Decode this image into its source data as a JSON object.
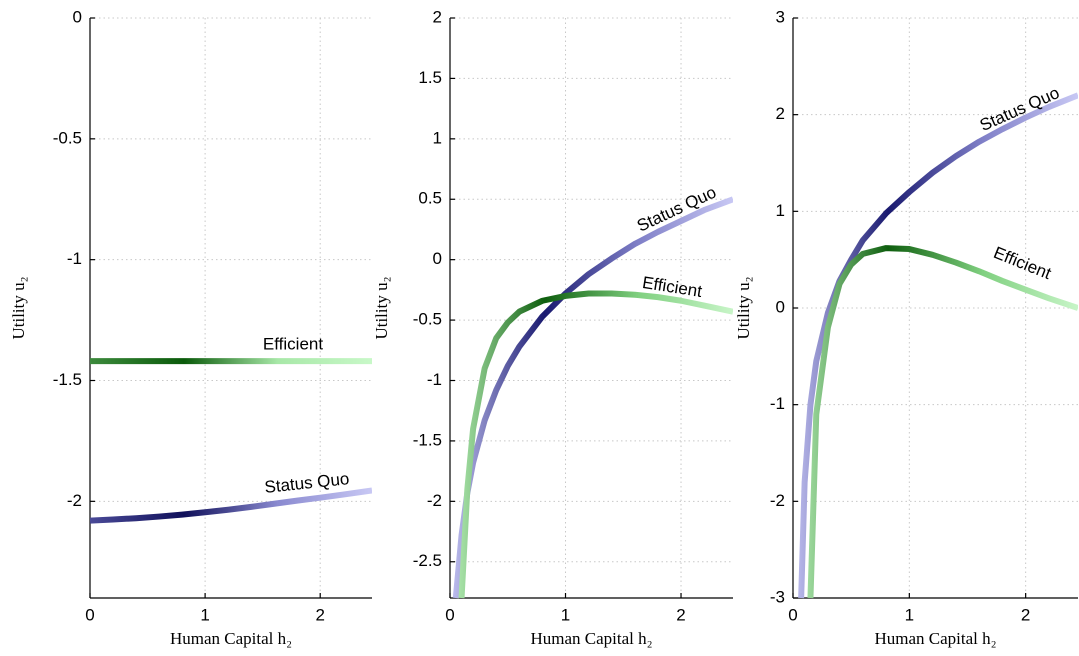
{
  "chart_data": [
    {
      "type": "line",
      "xlabel": "Human Capital h₂",
      "ylabel": "Utility u₂",
      "xlim": [
        0,
        2.45
      ],
      "ylim": [
        -2.4,
        0
      ],
      "xticks": [
        0,
        1,
        2
      ],
      "yticks": [
        -2,
        -1.5,
        -1,
        -0.5,
        0
      ],
      "grid": true,
      "x": [
        0,
        0.2,
        0.4,
        0.6,
        0.8,
        1,
        1.2,
        1.4,
        1.6,
        1.8,
        2,
        2.2,
        2.45
      ],
      "series": [
        {
          "name": "Efficient",
          "color": "#22dd22",
          "colors": [
            "#3c8a3c",
            "#0a5a0a",
            "#a8e8a8",
            "#c8f8c8"
          ],
          "values": [
            -1.42,
            -1.42,
            -1.42,
            -1.42,
            -1.42,
            -1.42,
            -1.42,
            -1.42,
            -1.42,
            -1.42,
            -1.42,
            -1.42,
            -1.42
          ]
        },
        {
          "name": "Status Quo",
          "color": "#1010d0",
          "colors": [
            "#4a4a98",
            "#10105a",
            "#8a8ad0",
            "#c8c8f4"
          ],
          "values": [
            -2.08,
            -2.075,
            -2.07,
            -2.063,
            -2.055,
            -2.045,
            -2.035,
            -2.023,
            -2.01,
            -1.997,
            -1.985,
            -1.972,
            -1.955
          ]
        }
      ]
    },
    {
      "type": "line",
      "xlabel": "Human Capital h₂",
      "ylabel": "Utility u₂",
      "xlim": [
        0,
        2.45
      ],
      "ylim": [
        -2.8,
        2
      ],
      "xticks": [
        0,
        1,
        2
      ],
      "yticks": [
        -2.5,
        -2,
        -1.5,
        -1,
        -0.5,
        0,
        0.5,
        1,
        1.5,
        2
      ],
      "grid": true,
      "x": [
        0.05,
        0.1,
        0.15,
        0.2,
        0.3,
        0.4,
        0.5,
        0.6,
        0.8,
        1,
        1.2,
        1.4,
        1.6,
        1.8,
        2,
        2.2,
        2.45
      ],
      "series": [
        {
          "name": "Status Quo",
          "color": "#1010d0",
          "colors": [
            "#c0c0f0",
            "#1a1a70",
            "#8080c8",
            "#c8c8f4"
          ],
          "values": [
            -2.8,
            -2.28,
            -1.93,
            -1.68,
            -1.33,
            -1.08,
            -0.88,
            -0.72,
            -0.47,
            -0.28,
            -0.12,
            0.01,
            0.13,
            0.23,
            0.32,
            0.41,
            0.5
          ]
        },
        {
          "name": "Efficient",
          "color": "#22dd22",
          "colors": [
            "#b8f0b8",
            "#0e5e0e",
            "#80d080",
            "#c8f5c8"
          ],
          "values": [
            null,
            -2.8,
            -1.9,
            -1.4,
            -0.9,
            -0.65,
            -0.52,
            -0.43,
            -0.34,
            -0.3,
            -0.28,
            -0.28,
            -0.29,
            -0.31,
            -0.34,
            -0.38,
            -0.43
          ]
        }
      ]
    },
    {
      "type": "line",
      "xlabel": "Human Capital h₂",
      "ylabel": "Utility u₂",
      "xlim": [
        0,
        2.45
      ],
      "ylim": [
        -3,
        3
      ],
      "xticks": [
        0,
        1,
        2
      ],
      "yticks": [
        -3,
        -2,
        -1,
        0,
        1,
        2,
        3
      ],
      "grid": true,
      "x": [
        0.07,
        0.1,
        0.15,
        0.2,
        0.3,
        0.4,
        0.5,
        0.6,
        0.8,
        1,
        1.2,
        1.4,
        1.6,
        1.8,
        2,
        2.2,
        2.45
      ],
      "series": [
        {
          "name": "Status Quo",
          "color": "#1010d0",
          "colors": [
            "#c0c0f0",
            "#1a1a70",
            "#8080c8",
            "#c8c8f4"
          ],
          "values": [
            -3,
            -1.8,
            -1.0,
            -0.55,
            -0.05,
            0.28,
            0.5,
            0.7,
            0.98,
            1.2,
            1.4,
            1.57,
            1.72,
            1.85,
            1.97,
            2.08,
            2.2
          ]
        },
        {
          "name": "Efficient",
          "color": "#22dd22",
          "colors": [
            "#b8f0b8",
            "#0e5e0e",
            "#80d080",
            "#c8f5c8"
          ],
          "values": [
            null,
            null,
            -3,
            -1.1,
            -0.2,
            0.25,
            0.45,
            0.56,
            0.62,
            0.61,
            0.55,
            0.47,
            0.38,
            0.28,
            0.19,
            0.1,
            0.0
          ]
        }
      ]
    }
  ]
}
